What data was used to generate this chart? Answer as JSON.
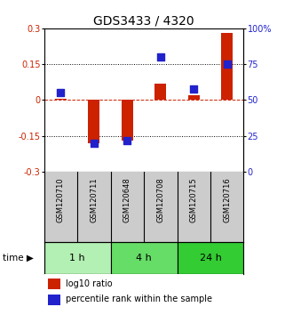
{
  "title": "GDS3433 / 4320",
  "samples": [
    "GSM120710",
    "GSM120711",
    "GSM120648",
    "GSM120708",
    "GSM120715",
    "GSM120716"
  ],
  "log10_ratio": [
    0.005,
    -0.18,
    -0.17,
    0.07,
    0.022,
    0.28
  ],
  "percentile_rank": [
    55,
    20,
    22,
    80,
    58,
    75
  ],
  "ylim_left": [
    -0.3,
    0.3
  ],
  "ylim_right": [
    0,
    100
  ],
  "yticks_left": [
    -0.3,
    -0.15,
    0.0,
    0.15,
    0.3
  ],
  "yticks_right": [
    0,
    25,
    50,
    75,
    100
  ],
  "ytick_labels_left": [
    "-0.3",
    "-0.15",
    "0",
    "0.15",
    "0.3"
  ],
  "ytick_labels_right": [
    "0",
    "25",
    "50",
    "75",
    "100%"
  ],
  "hlines": [
    -0.15,
    0.15
  ],
  "zero_line": 0.0,
  "time_groups": [
    {
      "label": "1 h",
      "start": 0,
      "end": 2,
      "color": "#b3f0b3"
    },
    {
      "label": "4 h",
      "start": 2,
      "end": 4,
      "color": "#66dd66"
    },
    {
      "label": "24 h",
      "start": 4,
      "end": 6,
      "color": "#33cc33"
    }
  ],
  "bar_color": "#cc2200",
  "dot_color": "#2222cc",
  "bar_width": 0.35,
  "dot_size": 30,
  "bg_color": "#ffffff",
  "label_color_left": "#cc2200",
  "label_color_right": "#2222cc",
  "sample_bg": "#cccccc",
  "legend_bar_label": "log10 ratio",
  "legend_dot_label": "percentile rank within the sample",
  "time_label": "time",
  "title_fontsize": 10,
  "tick_fontsize": 7,
  "legend_fontsize": 7,
  "sample_fontsize": 6
}
